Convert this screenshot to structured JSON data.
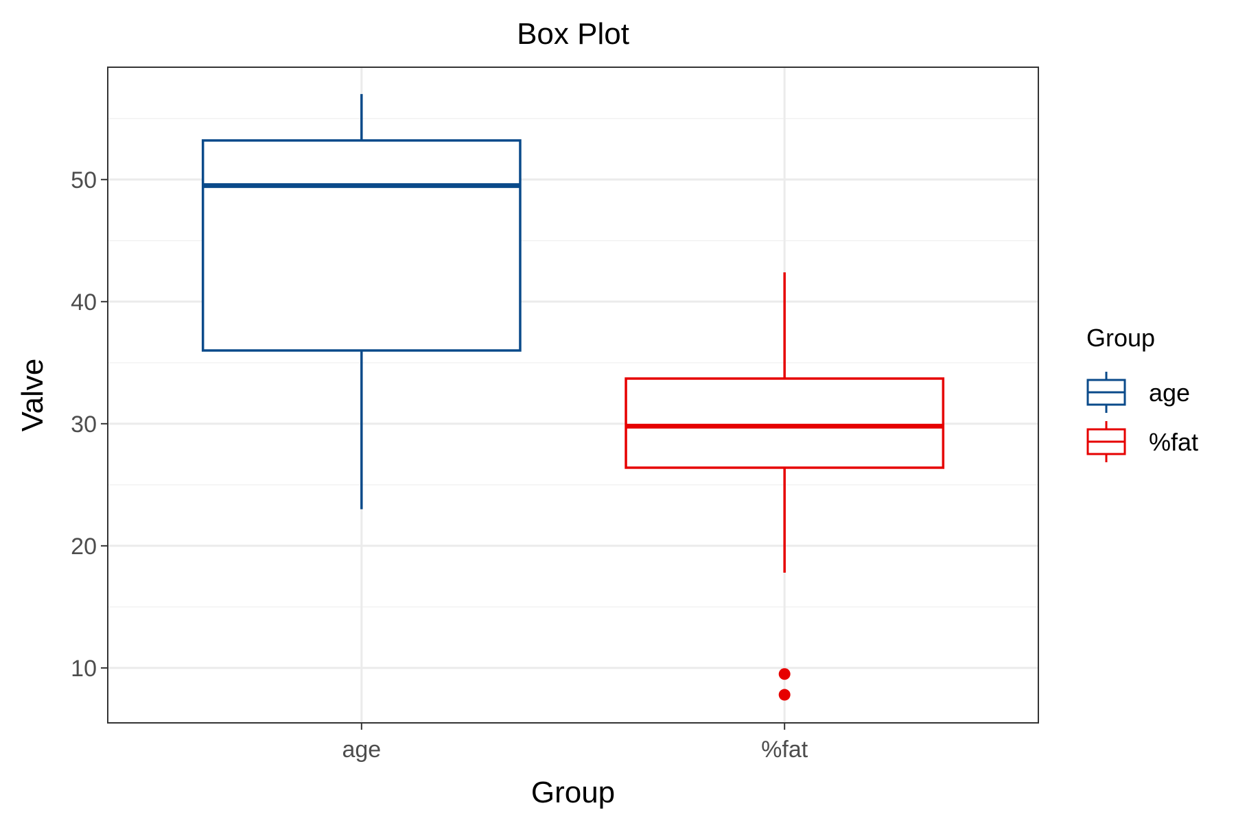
{
  "chart_data": {
    "type": "box",
    "title": "Box Plot",
    "xlabel": "Group",
    "ylabel": "Valve",
    "ylim": [
      5.5,
      59.2
    ],
    "y_ticks": [
      10,
      20,
      30,
      40,
      50
    ],
    "grid": true,
    "categories": [
      "age",
      "%fat"
    ],
    "series": [
      {
        "category": "age",
        "color": "#0A4A8A",
        "min": 23,
        "q1": 36,
        "median": 49.5,
        "q3": 53.2,
        "max": 57,
        "outliers": []
      },
      {
        "category": "%fat",
        "color": "#E60000",
        "min": 17.8,
        "q1": 26.4,
        "median": 29.8,
        "q3": 33.7,
        "max": 42.4,
        "outliers": [
          9.5,
          7.8
        ]
      }
    ],
    "legend": {
      "title": "Group",
      "position": "right",
      "items": [
        "age",
        "%fat"
      ]
    }
  }
}
